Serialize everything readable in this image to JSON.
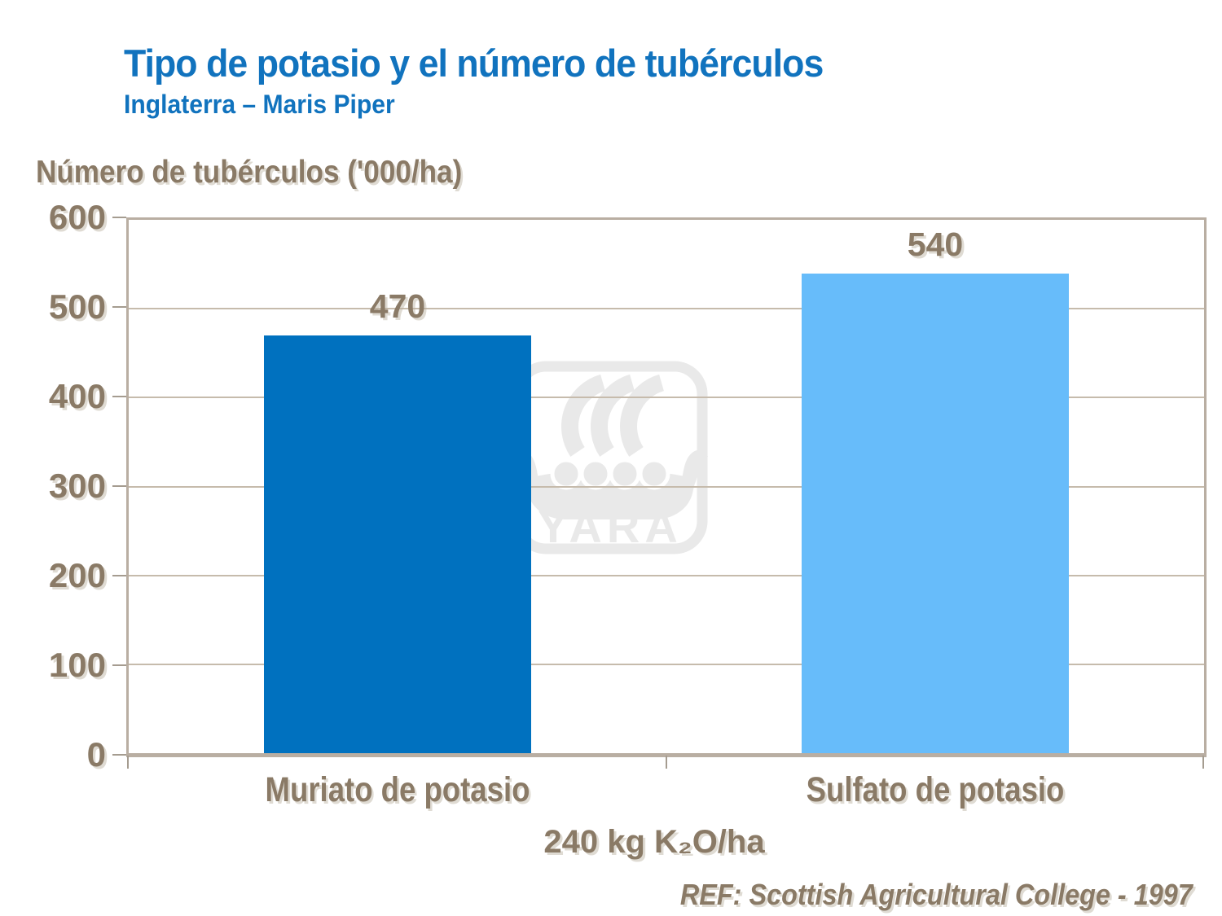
{
  "chart_data": {
    "type": "bar",
    "title": "Tipo de potasio y el número de tubérculos",
    "subtitle": "Inglaterra – Maris Piper",
    "ylabel": "Número de tubérculos ('000/ha)",
    "xlabel": "240 kg K₂O/ha",
    "categories": [
      "Muriato de potasio",
      "Sulfato de potasio"
    ],
    "values": [
      470,
      540
    ],
    "bar_colors": [
      "#0071BF",
      "#67BCFA"
    ],
    "ylim": [
      0,
      600
    ],
    "yticks": [
      0,
      100,
      200,
      300,
      400,
      500,
      600
    ],
    "grid": true,
    "legend_position": "none",
    "reference": "REF: Scottish Agricultural College - 1997",
    "watermark_text": "YARA"
  },
  "colors": {
    "title_blue": "#1173BE",
    "text_brown": "#8A7A66",
    "axis_tan": "#B9AEA2",
    "tick_mark": "#A59C90",
    "gridline": "#C6BBAC",
    "watermark_gray": "#E9E9E9",
    "bar_dark_blue": "#0071BF",
    "bar_light_blue": "#67BCFA",
    "background": "#FFFFFF"
  }
}
